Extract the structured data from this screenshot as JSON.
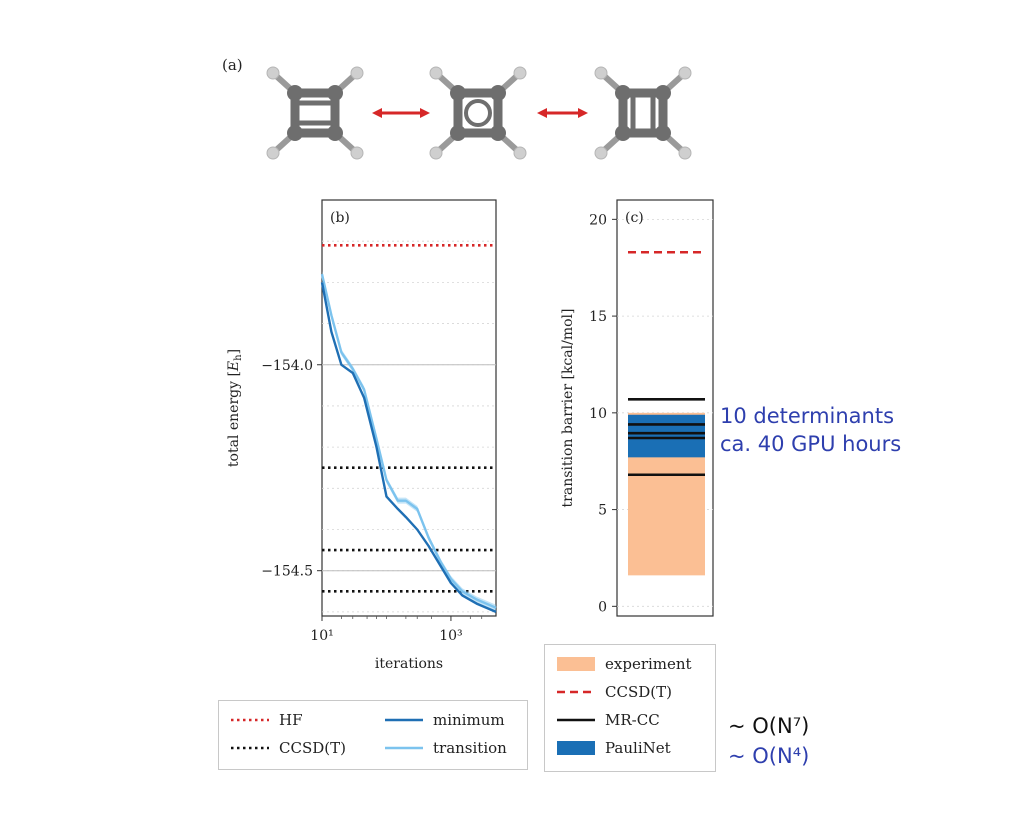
{
  "panel_a": {
    "label": "(a)"
  },
  "chart_data": [
    {
      "type": "line",
      "panel_label": "(b)",
      "xlabel": "iterations",
      "ylabel": "total energy [E_h]",
      "xscale": "log",
      "xlim": [
        10,
        5000
      ],
      "ylim": [
        -154.61,
        -153.6
      ],
      "xticks": [
        {
          "value": 10,
          "label": "10¹"
        },
        {
          "value": 1000,
          "label": "10³"
        }
      ],
      "yticks": [
        {
          "value": -154.0,
          "label": "−154.0"
        },
        {
          "value": -154.5,
          "label": "−154.5"
        }
      ],
      "grid": true,
      "reference_lines": [
        {
          "name": "HF",
          "y": -153.71,
          "color": "#d62728",
          "style": "dotted"
        },
        {
          "name": "CCSD(T)",
          "y": -154.25,
          "color": "#111111",
          "style": "dotted"
        },
        {
          "name": "CCSD(T)",
          "y": -154.45,
          "color": "#111111",
          "style": "dotted"
        },
        {
          "name": "CCSD(T)",
          "y": -154.55,
          "color": "#111111",
          "style": "dotted"
        }
      ],
      "series": [
        {
          "name": "minimum",
          "color": "#1f6fb4",
          "x": [
            10,
            14,
            20,
            30,
            45,
            70,
            100,
            150,
            200,
            300,
            450,
            700,
            1000,
            1500,
            2500,
            5000
          ],
          "y": [
            -153.8,
            -153.92,
            -154.0,
            -154.02,
            -154.08,
            -154.2,
            -154.32,
            -154.35,
            -154.37,
            -154.4,
            -154.44,
            -154.49,
            -154.53,
            -154.56,
            -154.58,
            -154.6
          ]
        },
        {
          "name": "transition",
          "color": "#7cc3ee",
          "x": [
            10,
            14,
            20,
            30,
            45,
            70,
            100,
            150,
            200,
            300,
            450,
            700,
            1000,
            1500,
            2500,
            5000
          ],
          "y": [
            -153.78,
            -153.88,
            -153.97,
            -154.01,
            -154.06,
            -154.18,
            -154.28,
            -154.33,
            -154.33,
            -154.35,
            -154.42,
            -154.48,
            -154.52,
            -154.55,
            -154.57,
            -154.59
          ]
        }
      ],
      "legend": {
        "placement": "bottom",
        "entries": [
          {
            "label": "HF",
            "color": "#d62728",
            "style": "dotted"
          },
          {
            "label": "minimum",
            "color": "#1f6fb4",
            "style": "solid"
          },
          {
            "label": "CCSD(T)",
            "color": "#111111",
            "style": "dotted"
          },
          {
            "label": "transition",
            "color": "#7cc3ee",
            "style": "solid"
          }
        ]
      }
    },
    {
      "type": "bar",
      "panel_label": "(c)",
      "ylabel": "transition barrier [kcal/mol]",
      "ylim": [
        -0.5,
        21
      ],
      "yticks": [
        0,
        5,
        10,
        15,
        20
      ],
      "grid": true,
      "bands": [
        {
          "name": "experiment",
          "from": 1.6,
          "to": 10.0,
          "color": "#fbbf94"
        },
        {
          "name": "PauliNet",
          "from": 7.7,
          "to": 9.9,
          "color": "#1a6fb5"
        }
      ],
      "lines": [
        {
          "name": "CCSD(T)",
          "y": 18.3,
          "color": "#d62728",
          "style": "dashed"
        },
        {
          "name": "MR-CC",
          "y": 10.7,
          "color": "#111111",
          "style": "solid"
        },
        {
          "name": "MR-CC",
          "y": 9.4,
          "color": "#111111",
          "style": "solid"
        },
        {
          "name": "MR-CC",
          "y": 8.95,
          "color": "#111111",
          "style": "solid"
        },
        {
          "name": "MR-CC",
          "y": 8.7,
          "color": "#111111",
          "style": "solid"
        },
        {
          "name": "MR-CC",
          "y": 6.8,
          "color": "#111111",
          "style": "solid"
        }
      ],
      "legend": {
        "placement": "bottom",
        "entries": [
          {
            "label": "experiment",
            "color": "#fbbf94",
            "style": "patch"
          },
          {
            "label": "CCSD(T)",
            "color": "#d62728",
            "style": "dashed"
          },
          {
            "label": "MR-CC",
            "color": "#111111",
            "style": "solid"
          },
          {
            "label": "PauliNet",
            "color": "#1a6fb5",
            "style": "patch"
          }
        ]
      }
    }
  ],
  "annotations": {
    "determinants": "10 determinants",
    "gpu_hours": "ca. 40 GPU hours",
    "scaling_mrcc": "~ O(N⁷)",
    "scaling_paulinet": "~ O(N⁴)"
  },
  "colors": {
    "annotation_blue": "#2e3fae",
    "carbon": "#6e6e6e",
    "hydrogen": "#cfcfcf",
    "arrow": "#d62728"
  }
}
